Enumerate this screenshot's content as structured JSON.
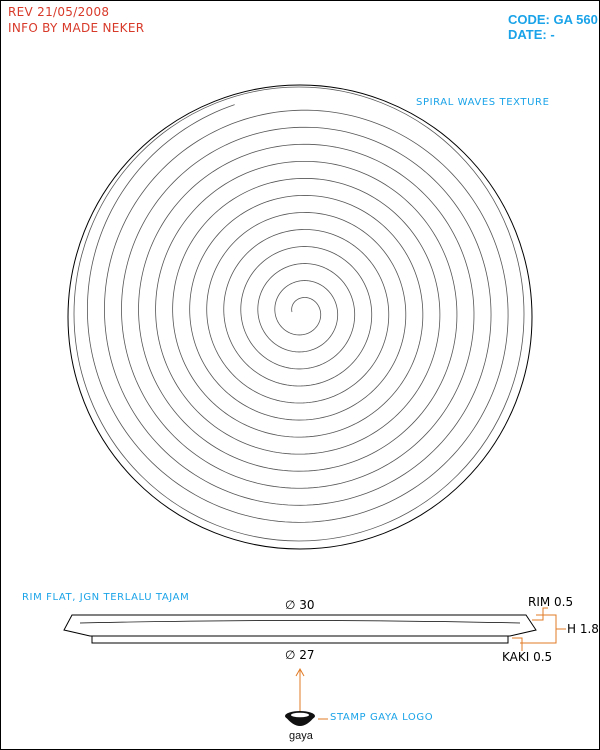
{
  "header": {
    "rev": "REV 21/05/2008",
    "info": "INFO BY MADE NEKER",
    "code": "CODE: GA 560",
    "date": "DATE: -"
  },
  "annotations": {
    "texture": "SPIRAL WAVES TEXTURE",
    "rim_note": "RIM FLAT, JGN TERLALU TAJAM",
    "stamp": "STAMP GAYA LOGO"
  },
  "dimensions": {
    "top_diameter": "∅ 30",
    "bottom_diameter": "∅ 27",
    "rim": "RIM 0.5",
    "height": "H 1.8",
    "kaki": "KAKI 0.5"
  },
  "logo": {
    "text": "gaya"
  },
  "colors": {
    "header_red": "#d83a2a",
    "accent_blue": "#1aa3e8",
    "leader_orange": "#e07a24",
    "line": "#000000"
  }
}
